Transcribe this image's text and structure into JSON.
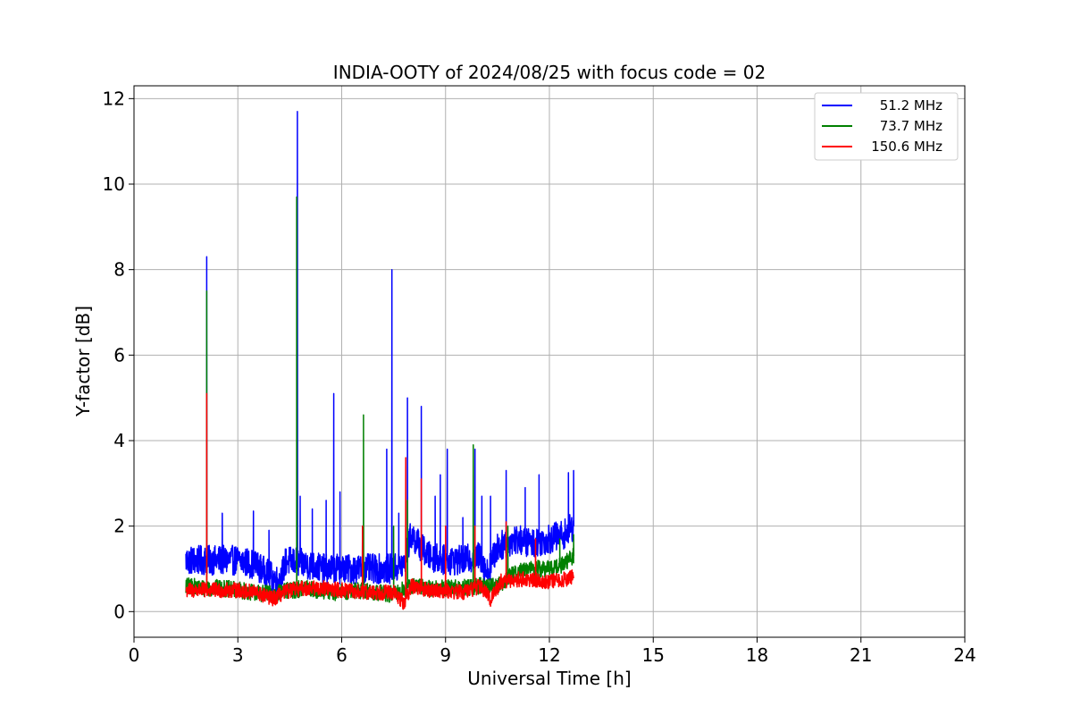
{
  "chart_data": {
    "type": "line",
    "title": "INDIA-OOTY of 2024/08/25 with focus code = 02",
    "xlabel": "Universal Time [h]",
    "ylabel": "Y-factor [dB]",
    "xlim": [
      0,
      24
    ],
    "ylim": [
      -0.6,
      12.3
    ],
    "xticks": [
      0,
      3,
      6,
      9,
      12,
      15,
      18,
      21,
      24
    ],
    "yticks": [
      0,
      2,
      4,
      6,
      8,
      10,
      12
    ],
    "grid": true,
    "legend_position": "top-right",
    "series": [
      {
        "name": "51.2 MHz",
        "color": "#0000ff",
        "base_x": [
          1.5,
          2.0,
          2.5,
          3.0,
          3.5,
          4.0,
          4.2,
          4.4,
          5.0,
          5.5,
          6.0,
          6.5,
          7.0,
          7.5,
          7.8,
          8.0,
          8.5,
          9.0,
          9.5,
          10.0,
          10.2,
          10.5,
          11.0,
          11.5,
          12.0,
          12.4,
          12.7
        ],
        "base_y": [
          1.2,
          1.2,
          1.2,
          1.2,
          1.1,
          0.8,
          0.7,
          1.2,
          1.1,
          1.0,
          1.0,
          1.0,
          1.0,
          1.0,
          1.1,
          1.8,
          1.3,
          1.2,
          1.2,
          1.3,
          0.9,
          1.5,
          1.7,
          1.6,
          1.7,
          1.8,
          2.0
        ],
        "amplitude": 0.35,
        "spikes": [
          [
            2.1,
            8.3
          ],
          [
            2.55,
            2.3
          ],
          [
            3.45,
            2.35
          ],
          [
            3.9,
            1.9
          ],
          [
            4.72,
            11.7
          ],
          [
            4.8,
            2.7
          ],
          [
            5.15,
            2.4
          ],
          [
            5.55,
            2.6
          ],
          [
            5.77,
            5.1
          ],
          [
            5.95,
            2.8
          ],
          [
            6.6,
            2.0
          ],
          [
            7.3,
            3.8
          ],
          [
            7.45,
            8.0
          ],
          [
            7.65,
            2.3
          ],
          [
            7.9,
            5.0
          ],
          [
            8.3,
            4.8
          ],
          [
            8.7,
            2.7
          ],
          [
            8.85,
            3.2
          ],
          [
            9.05,
            3.8
          ],
          [
            9.5,
            2.2
          ],
          [
            9.85,
            3.8
          ],
          [
            10.05,
            2.7
          ],
          [
            10.3,
            2.7
          ],
          [
            10.75,
            3.3
          ],
          [
            11.3,
            2.9
          ],
          [
            11.7,
            3.2
          ],
          [
            12.55,
            3.25
          ],
          [
            12.7,
            3.3
          ]
        ]
      },
      {
        "name": "73.7 MHz",
        "color": "#008000",
        "base_x": [
          1.5,
          2.0,
          2.5,
          3.0,
          3.5,
          4.0,
          4.5,
          5.0,
          5.5,
          6.0,
          6.5,
          7.0,
          7.5,
          8.0,
          8.5,
          9.0,
          9.5,
          10.0,
          10.5,
          11.0,
          11.5,
          12.0,
          12.4,
          12.7
        ],
        "base_y": [
          0.6,
          0.55,
          0.55,
          0.5,
          0.45,
          0.4,
          0.5,
          0.55,
          0.45,
          0.45,
          0.5,
          0.45,
          0.4,
          0.6,
          0.55,
          0.55,
          0.55,
          0.6,
          0.6,
          0.9,
          1.0,
          1.0,
          1.1,
          1.3
        ],
        "amplitude": 0.2,
        "spikes": [
          [
            2.1,
            7.5
          ],
          [
            4.7,
            9.7
          ],
          [
            6.63,
            4.6
          ],
          [
            7.5,
            2.0
          ],
          [
            7.9,
            2.6
          ],
          [
            9.8,
            3.9
          ],
          [
            10.8,
            2.0
          ],
          [
            12.3,
            1.7
          ],
          [
            12.7,
            1.8
          ]
        ]
      },
      {
        "name": "150.6 MHz",
        "color": "#ff0000",
        "base_x": [
          1.5,
          2.0,
          2.5,
          3.0,
          3.5,
          4.0,
          4.5,
          5.0,
          5.5,
          6.0,
          6.5,
          7.0,
          7.5,
          7.8,
          8.0,
          8.5,
          9.0,
          9.5,
          10.0,
          10.3,
          10.6,
          11.0,
          11.5,
          12.0,
          12.4,
          12.7
        ],
        "base_y": [
          0.5,
          0.5,
          0.5,
          0.5,
          0.45,
          0.3,
          0.5,
          0.55,
          0.55,
          0.5,
          0.45,
          0.45,
          0.45,
          0.2,
          0.6,
          0.5,
          0.5,
          0.45,
          0.6,
          0.3,
          0.7,
          0.75,
          0.75,
          0.7,
          0.75,
          0.8
        ],
        "amplitude": 0.18,
        "spikes": [
          [
            2.1,
            5.1
          ],
          [
            6.6,
            2.0
          ],
          [
            7.85,
            3.6
          ],
          [
            8.3,
            3.1
          ],
          [
            9.0,
            2.0
          ],
          [
            9.85,
            2.0
          ],
          [
            10.75,
            2.1
          ],
          [
            11.6,
            1.7
          ]
        ]
      }
    ]
  }
}
